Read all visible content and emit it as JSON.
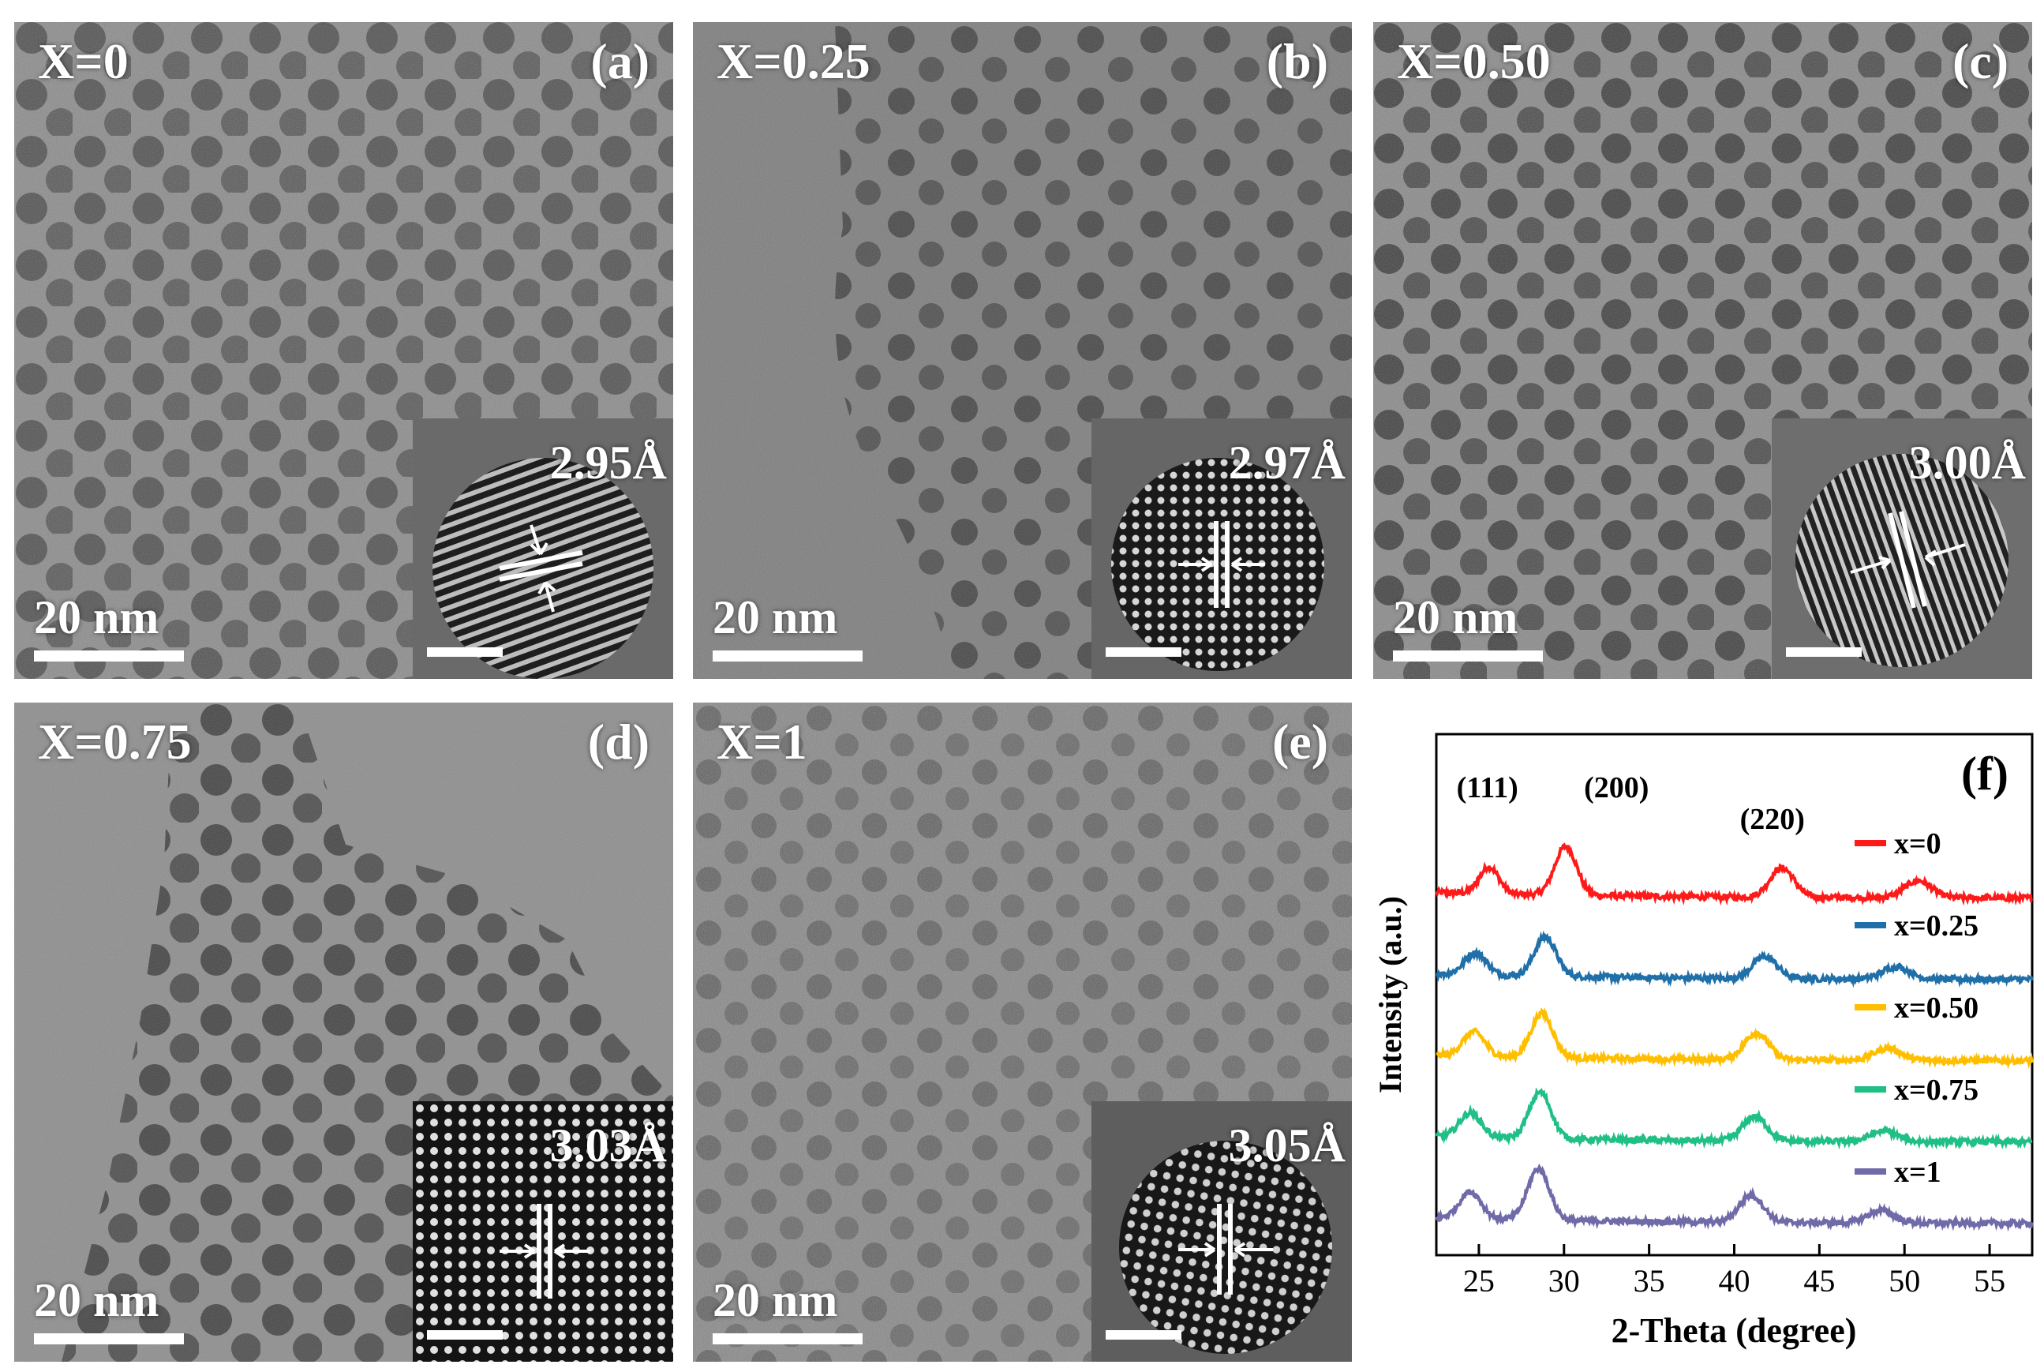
{
  "panels": [
    {
      "x_label": "X=0",
      "panel_label": "(a)",
      "scale_bar": "20 nm",
      "inset_d_spacing": "2.95Å"
    },
    {
      "x_label": "X=0.25",
      "panel_label": "(b)",
      "scale_bar": "20 nm",
      "inset_d_spacing": "2.97Å"
    },
    {
      "x_label": "X=0.50",
      "panel_label": "(c)",
      "scale_bar": "20 nm",
      "inset_d_spacing": "3.00Å"
    },
    {
      "x_label": "X=0.75",
      "panel_label": "(d)",
      "scale_bar": "20 nm",
      "inset_d_spacing": "3.03Å"
    },
    {
      "x_label": "X=1",
      "panel_label": "(e)",
      "scale_bar": "20 nm",
      "inset_d_spacing": "3.05Å"
    }
  ],
  "colors": {
    "x=0": "#ff1a1a",
    "x=0.25": "#1f6fa8",
    "x=0.50": "#ffbf00",
    "x=0.75": "#1fbf86",
    "x=1": "#6f6aa8"
  },
  "chart_data": {
    "type": "line",
    "panel_label": "(f)",
    "xlabel": "2-Theta (degree)",
    "ylabel": "Intensity (a.u.)",
    "xlim": [
      22.5,
      57.5
    ],
    "xticks": [
      25,
      30,
      35,
      40,
      45,
      50,
      55
    ],
    "yticks_shown": false,
    "legend_position": "right",
    "peak_labels": [
      {
        "text": "(111)",
        "x": 25.5
      },
      {
        "text": "(200)",
        "x": 30.3
      },
      {
        "text": "(220)",
        "x": 42.7
      }
    ],
    "series": [
      {
        "name": "x=0",
        "color": "#ff1a1a",
        "offset": 4,
        "peaks": [
          [
            25.6,
            0.55,
            0.8
          ],
          [
            30.1,
            1.0,
            0.9
          ],
          [
            42.8,
            0.6,
            1.0
          ],
          [
            50.8,
            0.35,
            1.1
          ]
        ]
      },
      {
        "name": "x=0.25",
        "color": "#1f6fa8",
        "offset": 3,
        "peaks": [
          [
            24.8,
            0.45,
            0.9
          ],
          [
            28.9,
            0.8,
            0.9
          ],
          [
            41.8,
            0.45,
            1.0
          ],
          [
            49.5,
            0.25,
            1.1
          ]
        ]
      },
      {
        "name": "x=0.50",
        "color": "#ffbf00",
        "offset": 2,
        "peaks": [
          [
            24.7,
            0.5,
            0.9
          ],
          [
            28.7,
            0.9,
            0.9
          ],
          [
            41.3,
            0.55,
            1.0
          ],
          [
            49.0,
            0.25,
            1.1
          ]
        ]
      },
      {
        "name": "x=0.75",
        "color": "#1fbf86",
        "offset": 1,
        "peaks": [
          [
            24.5,
            0.5,
            0.9
          ],
          [
            28.6,
            0.95,
            0.9
          ],
          [
            41.2,
            0.5,
            1.0
          ],
          [
            48.8,
            0.22,
            1.1
          ]
        ]
      },
      {
        "name": "x=1",
        "color": "#6f6aa8",
        "offset": 0,
        "peaks": [
          [
            24.5,
            0.55,
            0.9
          ],
          [
            28.5,
            1.05,
            0.9
          ],
          [
            41.0,
            0.55,
            1.0
          ],
          [
            48.6,
            0.25,
            1.1
          ]
        ]
      }
    ]
  }
}
